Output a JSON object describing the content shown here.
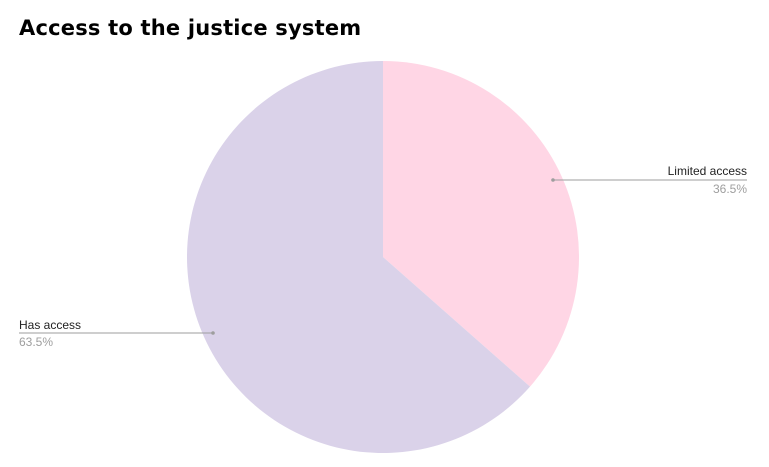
{
  "chart_data": {
    "type": "pie",
    "title": "Access to the justice system",
    "slices": [
      {
        "label": "Limited access",
        "value": 36.5,
        "display": "36.5%",
        "color": "#ffd6e5"
      },
      {
        "label": "Has access",
        "value": 63.5,
        "display": "63.5%",
        "color": "#dad2e9"
      }
    ],
    "start_angle": "12 o'clock",
    "direction": "clockwise",
    "legend": "none",
    "leader_line_color": "#9e9e9e"
  }
}
